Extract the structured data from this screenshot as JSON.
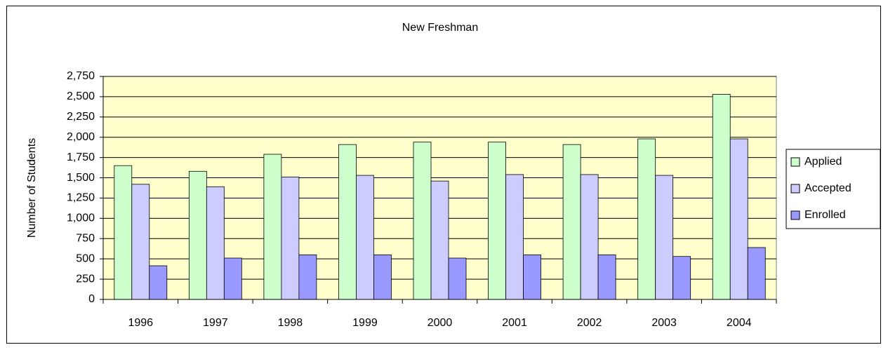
{
  "chart_data": {
    "type": "bar",
    "title": "New Freshman",
    "y_label": "Number of Students",
    "categories": [
      "1996",
      "1997",
      "1998",
      "1999",
      "2000",
      "2001",
      "2002",
      "2003",
      "2004"
    ],
    "series": [
      {
        "name": "Applied",
        "color": "#ccffcc",
        "values": [
          1650,
          1580,
          1790,
          1910,
          1940,
          1940,
          1910,
          1980,
          2530
        ]
      },
      {
        "name": "Accepted",
        "color": "#ccccff",
        "values": [
          1420,
          1390,
          1510,
          1530,
          1460,
          1540,
          1540,
          1530,
          1980
        ]
      },
      {
        "name": "Enrolled",
        "color": "#9999ff",
        "values": [
          415,
          510,
          550,
          550,
          510,
          550,
          550,
          530,
          640
        ]
      }
    ],
    "ylim": [
      0,
      2750
    ],
    "yticks": [
      0,
      250,
      500,
      750,
      {
        "value": 1000,
        "label": "1,000"
      },
      {
        "value": 1250,
        "label": "1,250"
      },
      {
        "value": 1500,
        "label": "1,500"
      },
      {
        "value": 1750,
        "label": "1,750"
      },
      {
        "value": 2000,
        "label": "2,000"
      },
      {
        "value": 2250,
        "label": "2,250"
      },
      {
        "value": 2500,
        "label": "2,500"
      },
      {
        "value": 2750,
        "label": "2,750"
      }
    ],
    "grid": true,
    "legend": "right",
    "plot_background": "#ffffcc"
  }
}
